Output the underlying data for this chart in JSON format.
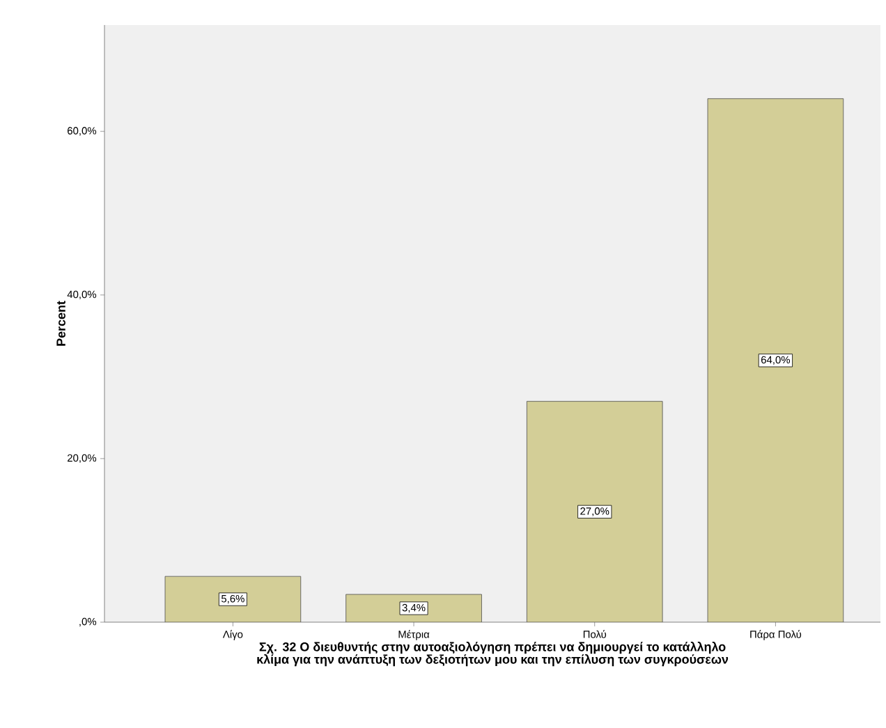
{
  "chart_data": {
    "type": "bar",
    "xlabel": "Σχ. 32 Ο διευθυντής στην αυτοαξιολόγηση πρέπει να δημιουργεί το κατάλληλο κλίμα για την ανάπτυξη των δεξιοτήτων μου και την επίλυση των συγκρούσεων",
    "ylabel": "Percent",
    "categories": [
      "Λίγο",
      "Μέτρια",
      "Πολύ",
      "Πάρα Πολύ"
    ],
    "values": [
      5.6,
      3.4,
      27.0,
      64.0
    ],
    "value_labels": [
      "5,6%",
      "3,4%",
      "27,0%",
      "64,0%"
    ],
    "color": "#d3ce97",
    "ylim": [
      0,
      73
    ],
    "yticks": [
      {
        "value": 0,
        "label": ",0%"
      },
      {
        "value": 20,
        "label": "20,0%"
      },
      {
        "value": 40,
        "label": "40,0%"
      },
      {
        "value": 60,
        "label": "60,0%"
      }
    ]
  }
}
